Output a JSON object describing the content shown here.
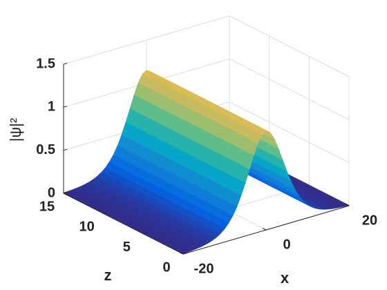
{
  "chart_data": {
    "type": "surface",
    "xlabel": "x",
    "zlabel": "z",
    "hlabel": "|ψ|²",
    "x": [
      -20,
      -19,
      -18,
      -17,
      -16,
      -15,
      -14,
      -13,
      -12,
      -11,
      -10,
      -9,
      -8,
      -7,
      -6,
      -5,
      -4,
      -3,
      -2,
      -1,
      0,
      1,
      2,
      3,
      4,
      5,
      6,
      7,
      8,
      9,
      10,
      11,
      12,
      13,
      14,
      15,
      16,
      17,
      18,
      19,
      20
    ],
    "z": [
      0,
      5,
      10,
      15
    ],
    "values": [
      [
        0.006,
        0.008,
        0.011,
        0.016,
        0.022,
        0.031,
        0.042,
        0.059,
        0.081,
        0.112,
        0.152,
        0.208,
        0.279,
        0.37,
        0.483,
        0.615,
        0.759,
        0.904,
        1.031,
        1.119,
        1.15,
        1.119,
        1.031,
        0.904,
        0.759,
        0.615,
        0.483,
        0.37,
        0.279,
        0.208,
        0.152,
        0.112,
        0.081,
        0.059,
        0.042,
        0.031,
        0.022,
        0.016,
        0.011,
        0.008,
        0.006
      ],
      [
        0.006,
        0.008,
        0.011,
        0.016,
        0.022,
        0.031,
        0.042,
        0.059,
        0.081,
        0.112,
        0.152,
        0.208,
        0.279,
        0.37,
        0.483,
        0.615,
        0.759,
        0.904,
        1.031,
        1.119,
        1.15,
        1.119,
        1.031,
        0.904,
        0.759,
        0.615,
        0.483,
        0.37,
        0.279,
        0.208,
        0.152,
        0.112,
        0.081,
        0.059,
        0.042,
        0.031,
        0.022,
        0.016,
        0.011,
        0.008,
        0.006
      ],
      [
        0.006,
        0.008,
        0.011,
        0.016,
        0.022,
        0.031,
        0.042,
        0.059,
        0.081,
        0.112,
        0.152,
        0.208,
        0.279,
        0.37,
        0.483,
        0.615,
        0.759,
        0.904,
        1.031,
        1.119,
        1.15,
        1.119,
        1.031,
        0.904,
        0.759,
        0.615,
        0.483,
        0.37,
        0.279,
        0.208,
        0.152,
        0.112,
        0.081,
        0.059,
        0.042,
        0.031,
        0.022,
        0.016,
        0.011,
        0.008,
        0.006
      ],
      [
        0.006,
        0.008,
        0.011,
        0.016,
        0.022,
        0.031,
        0.042,
        0.059,
        0.081,
        0.112,
        0.152,
        0.208,
        0.279,
        0.37,
        0.483,
        0.615,
        0.759,
        0.904,
        1.031,
        1.119,
        1.15,
        1.119,
        1.031,
        0.904,
        0.759,
        0.615,
        0.483,
        0.37,
        0.279,
        0.208,
        0.152,
        0.112,
        0.081,
        0.059,
        0.042,
        0.031,
        0.022,
        0.016,
        0.011,
        0.008,
        0.006
      ]
    ],
    "xlim": [
      -20,
      20
    ],
    "zlim": [
      0,
      15
    ],
    "hlim": [
      0,
      1.5
    ],
    "xticks": [
      -20,
      0,
      20
    ],
    "zticks": [
      0,
      5,
      10,
      15
    ],
    "hticks": [
      0,
      0.5,
      1,
      1.5
    ],
    "grid": true,
    "colormap": [
      "#352a87",
      "#0363e1",
      "#1485d4",
      "#06a7c6",
      "#38b99e",
      "#92bf73",
      "#d9ba56",
      "#fcce2e",
      "#f9fb0e"
    ]
  }
}
